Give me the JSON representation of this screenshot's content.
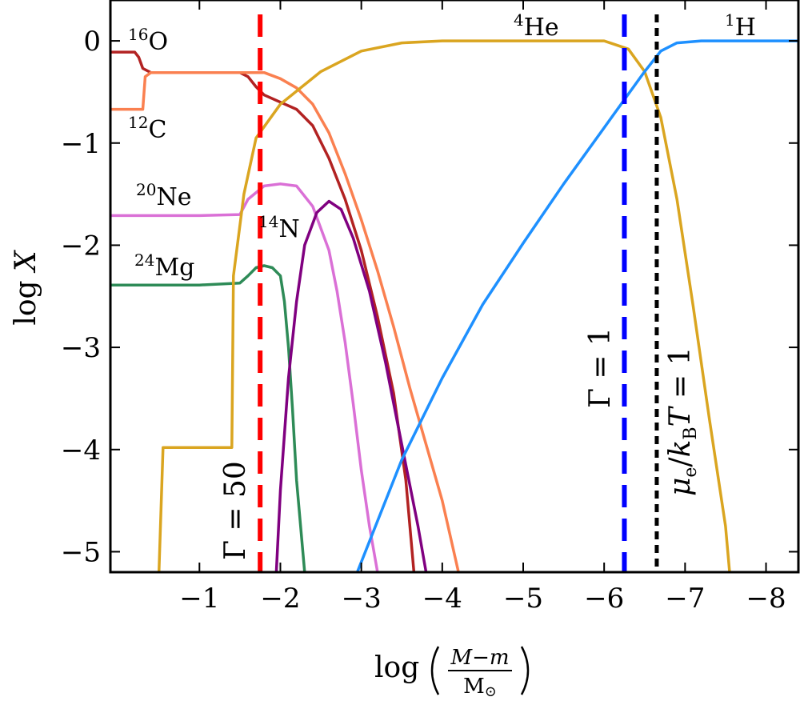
{
  "chart_data": {
    "type": "line",
    "title": "",
    "xlabel": "log (M−m / M☉)",
    "xlabel_parts": {
      "prefix": "log",
      "num_a": "M",
      "num_op": "−",
      "num_b": "m",
      "den": "M",
      "den_sub": "⊙"
    },
    "ylabel": "log X",
    "ylabel_parts": {
      "prefix": "log",
      "var": "X"
    },
    "xlim": [
      0.1,
      -8.4
    ],
    "ylim": [
      -5.2,
      0.4
    ],
    "x_ticks": [
      -1,
      -2,
      -3,
      -4,
      -5,
      -6,
      -7,
      -8
    ],
    "y_ticks": [
      0,
      -1,
      -2,
      -3,
      -4,
      -5
    ],
    "x_tick_labels": [
      "−1",
      "−2",
      "−3",
      "−4",
      "−5",
      "−6",
      "−7",
      "−8"
    ],
    "y_tick_labels": [
      "0",
      "−1",
      "−2",
      "−3",
      "−4",
      "−5"
    ],
    "series": [
      {
        "name": "16O",
        "mass": "16",
        "sym": "O",
        "color": "#b22222",
        "points": [
          [
            0.1,
            -0.11
          ],
          [
            -0.2,
            -0.11
          ],
          [
            -0.25,
            -0.16
          ],
          [
            -0.3,
            -0.27
          ],
          [
            -0.4,
            -0.31
          ],
          [
            -1.0,
            -0.31
          ],
          [
            -1.5,
            -0.31
          ],
          [
            -1.6,
            -0.35
          ],
          [
            -1.7,
            -0.45
          ],
          [
            -1.8,
            -0.53
          ],
          [
            -2.0,
            -0.6
          ],
          [
            -2.2,
            -0.67
          ],
          [
            -2.4,
            -0.83
          ],
          [
            -2.6,
            -1.15
          ],
          [
            -2.8,
            -1.55
          ],
          [
            -3.0,
            -2.05
          ],
          [
            -3.2,
            -2.7
          ],
          [
            -3.4,
            -3.45
          ],
          [
            -3.55,
            -4.3
          ],
          [
            -3.65,
            -5.2
          ]
        ]
      },
      {
        "name": "12C",
        "mass": "12",
        "sym": "C",
        "color": "#fa8050",
        "points": [
          [
            0.1,
            -0.67
          ],
          [
            -0.2,
            -0.67
          ],
          [
            -0.3,
            -0.67
          ],
          [
            -0.33,
            -0.35
          ],
          [
            -0.4,
            -0.31
          ],
          [
            -1.0,
            -0.31
          ],
          [
            -1.5,
            -0.31
          ],
          [
            -1.8,
            -0.31
          ],
          [
            -2.0,
            -0.37
          ],
          [
            -2.2,
            -0.46
          ],
          [
            -2.4,
            -0.62
          ],
          [
            -2.6,
            -0.9
          ],
          [
            -2.8,
            -1.3
          ],
          [
            -3.0,
            -1.75
          ],
          [
            -3.2,
            -2.25
          ],
          [
            -3.4,
            -2.8
          ],
          [
            -3.6,
            -3.4
          ],
          [
            -3.8,
            -3.95
          ],
          [
            -4.0,
            -4.5
          ],
          [
            -4.2,
            -5.2
          ]
        ]
      },
      {
        "name": "20Ne",
        "mass": "20",
        "sym": "Ne",
        "color": "#da70d6",
        "points": [
          [
            0.1,
            -1.71
          ],
          [
            -1.0,
            -1.71
          ],
          [
            -1.5,
            -1.7
          ],
          [
            -1.6,
            -1.55
          ],
          [
            -1.8,
            -1.42
          ],
          [
            -2.0,
            -1.4
          ],
          [
            -2.2,
            -1.42
          ],
          [
            -2.4,
            -1.62
          ],
          [
            -2.6,
            -2.05
          ],
          [
            -2.7,
            -2.45
          ],
          [
            -2.8,
            -2.95
          ],
          [
            -2.9,
            -3.55
          ],
          [
            -3.0,
            -4.2
          ],
          [
            -3.1,
            -4.75
          ],
          [
            -3.2,
            -5.2
          ]
        ]
      },
      {
        "name": "24Mg",
        "mass": "24",
        "sym": "Mg",
        "color": "#2e8b57",
        "points": [
          [
            0.1,
            -2.39
          ],
          [
            -1.0,
            -2.39
          ],
          [
            -1.5,
            -2.37
          ],
          [
            -1.6,
            -2.3
          ],
          [
            -1.7,
            -2.22
          ],
          [
            -1.8,
            -2.2
          ],
          [
            -1.9,
            -2.22
          ],
          [
            -2.0,
            -2.3
          ],
          [
            -2.05,
            -2.55
          ],
          [
            -2.1,
            -3.0
          ],
          [
            -2.15,
            -3.6
          ],
          [
            -2.2,
            -4.3
          ],
          [
            -2.3,
            -5.2
          ]
        ]
      },
      {
        "name": "14N",
        "mass": "14",
        "sym": "N",
        "color": "#800080",
        "points": [
          [
            -1.95,
            -5.2
          ],
          [
            -2.0,
            -4.4
          ],
          [
            -2.1,
            -3.3
          ],
          [
            -2.2,
            -2.55
          ],
          [
            -2.3,
            -2.0
          ],
          [
            -2.45,
            -1.68
          ],
          [
            -2.6,
            -1.57
          ],
          [
            -2.75,
            -1.65
          ],
          [
            -2.9,
            -1.93
          ],
          [
            -3.1,
            -2.45
          ],
          [
            -3.3,
            -3.15
          ],
          [
            -3.5,
            -3.95
          ],
          [
            -3.7,
            -4.75
          ],
          [
            -3.8,
            -5.2
          ]
        ]
      },
      {
        "name": "4He",
        "mass": "4",
        "sym": "He",
        "color": "#daa520",
        "points": [
          [
            -0.5,
            -5.2
          ],
          [
            -0.55,
            -3.98
          ],
          [
            -1.0,
            -3.98
          ],
          [
            -1.4,
            -3.98
          ],
          [
            -1.42,
            -2.3
          ],
          [
            -1.55,
            -1.5
          ],
          [
            -1.7,
            -0.95
          ],
          [
            -2.0,
            -0.62
          ],
          [
            -2.5,
            -0.3
          ],
          [
            -3.0,
            -0.1
          ],
          [
            -3.5,
            -0.02
          ],
          [
            -4.0,
            0.0
          ],
          [
            -5.0,
            0.0
          ],
          [
            -6.0,
            0.0
          ],
          [
            -6.3,
            -0.08
          ],
          [
            -6.5,
            -0.3
          ],
          [
            -6.7,
            -0.75
          ],
          [
            -6.9,
            -1.55
          ],
          [
            -7.1,
            -2.6
          ],
          [
            -7.3,
            -3.7
          ],
          [
            -7.5,
            -4.75
          ],
          [
            -7.55,
            -5.2
          ]
        ]
      },
      {
        "name": "1H",
        "mass": "1",
        "sym": "H",
        "color": "#1e90ff",
        "points": [
          [
            -2.95,
            -5.2
          ],
          [
            -3.5,
            -4.1
          ],
          [
            -4.0,
            -3.3
          ],
          [
            -4.5,
            -2.58
          ],
          [
            -5.0,
            -1.98
          ],
          [
            -5.5,
            -1.4
          ],
          [
            -6.0,
            -0.85
          ],
          [
            -6.3,
            -0.52
          ],
          [
            -6.5,
            -0.3
          ],
          [
            -6.7,
            -0.1
          ],
          [
            -6.9,
            -0.02
          ],
          [
            -7.2,
            0.0
          ],
          [
            -8.4,
            0.0
          ]
        ]
      }
    ],
    "vlines": [
      {
        "name": "gamma-50",
        "x": -1.75,
        "color": "#ff0000",
        "style": "dashed",
        "label": "Γ = 50"
      },
      {
        "name": "gamma-1",
        "x": -6.25,
        "color": "#0000ff",
        "style": "dashed",
        "label": "Γ = 1"
      },
      {
        "name": "mu-kbt-1",
        "x": -6.65,
        "color": "#000000",
        "style": "dotted",
        "label_parts": {
          "mu": "μ",
          "mu_sub": "e",
          "slash": "/",
          "k": "k",
          "k_sub": "B",
          "t": "T",
          "eq": " = 1"
        }
      }
    ]
  }
}
